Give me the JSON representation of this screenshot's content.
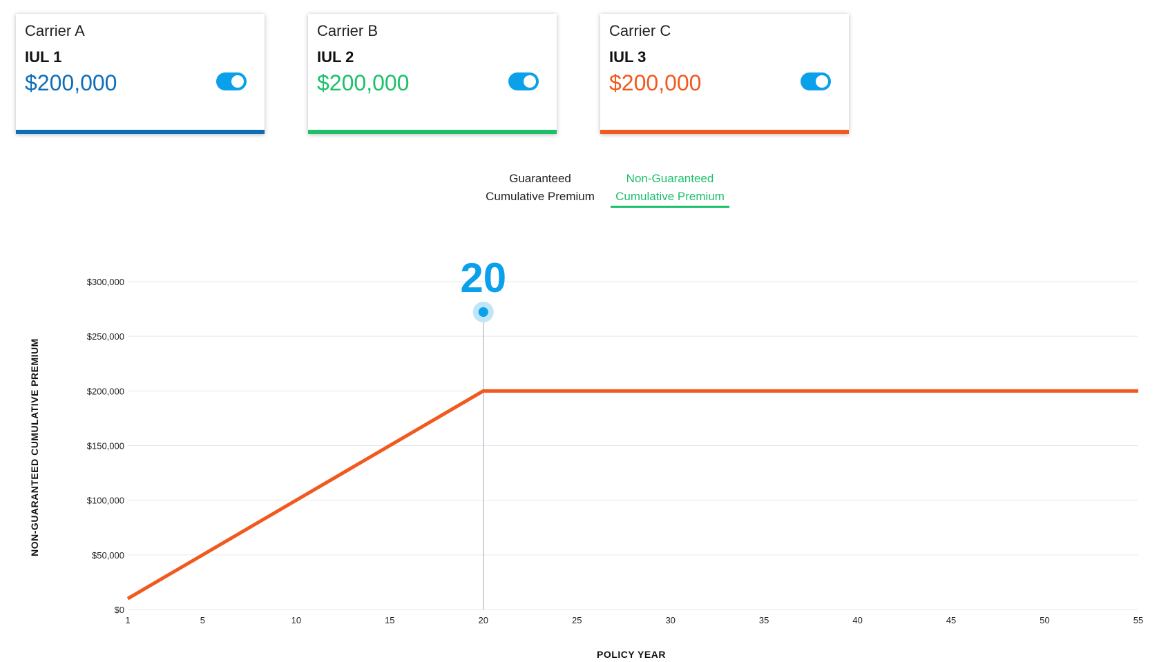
{
  "cards": [
    {
      "carrier": "Carrier A",
      "product": "IUL 1",
      "amount": "$200,000",
      "color": "#0f6db8",
      "toggle_on": true
    },
    {
      "carrier": "Carrier B",
      "product": "IUL 2",
      "amount": "$200,000",
      "color": "#1cc06a",
      "toggle_on": true
    },
    {
      "carrier": "Carrier C",
      "product": "IUL 3",
      "amount": "$200,000",
      "color": "#f05a1e",
      "toggle_on": true
    }
  ],
  "tabs": [
    {
      "line1": "Guaranteed",
      "line2": "Cumulative Premium",
      "active": false
    },
    {
      "line1": "Non-Guaranteed",
      "line2": "Cumulative Premium",
      "active": true
    }
  ],
  "colors": {
    "accent": "#0aa0ea",
    "active_tab": "#1cc06a",
    "line": "#f05a1e"
  },
  "chart_data": {
    "type": "line",
    "ylabel": "NON-GUARANTEED CUMULATIVE PREMIUM",
    "xlabel": "POLICY YEAR",
    "xlim": [
      1,
      55
    ],
    "ylim": [
      0,
      300000
    ],
    "x_ticks": [
      "1",
      "5",
      "10",
      "15",
      "20",
      "25",
      "30",
      "35",
      "40",
      "45",
      "50",
      "55"
    ],
    "y_ticks": [
      "$0",
      "$50,000",
      "$100,000",
      "$150,000",
      "$200,000",
      "$250,000",
      "$300,000"
    ],
    "grid": true,
    "series": [
      {
        "color": "#f05a1e",
        "x": [
          1,
          20,
          55
        ],
        "y": [
          10000,
          200000,
          200000
        ]
      }
    ],
    "marker": {
      "year": 20,
      "label": "20"
    }
  }
}
